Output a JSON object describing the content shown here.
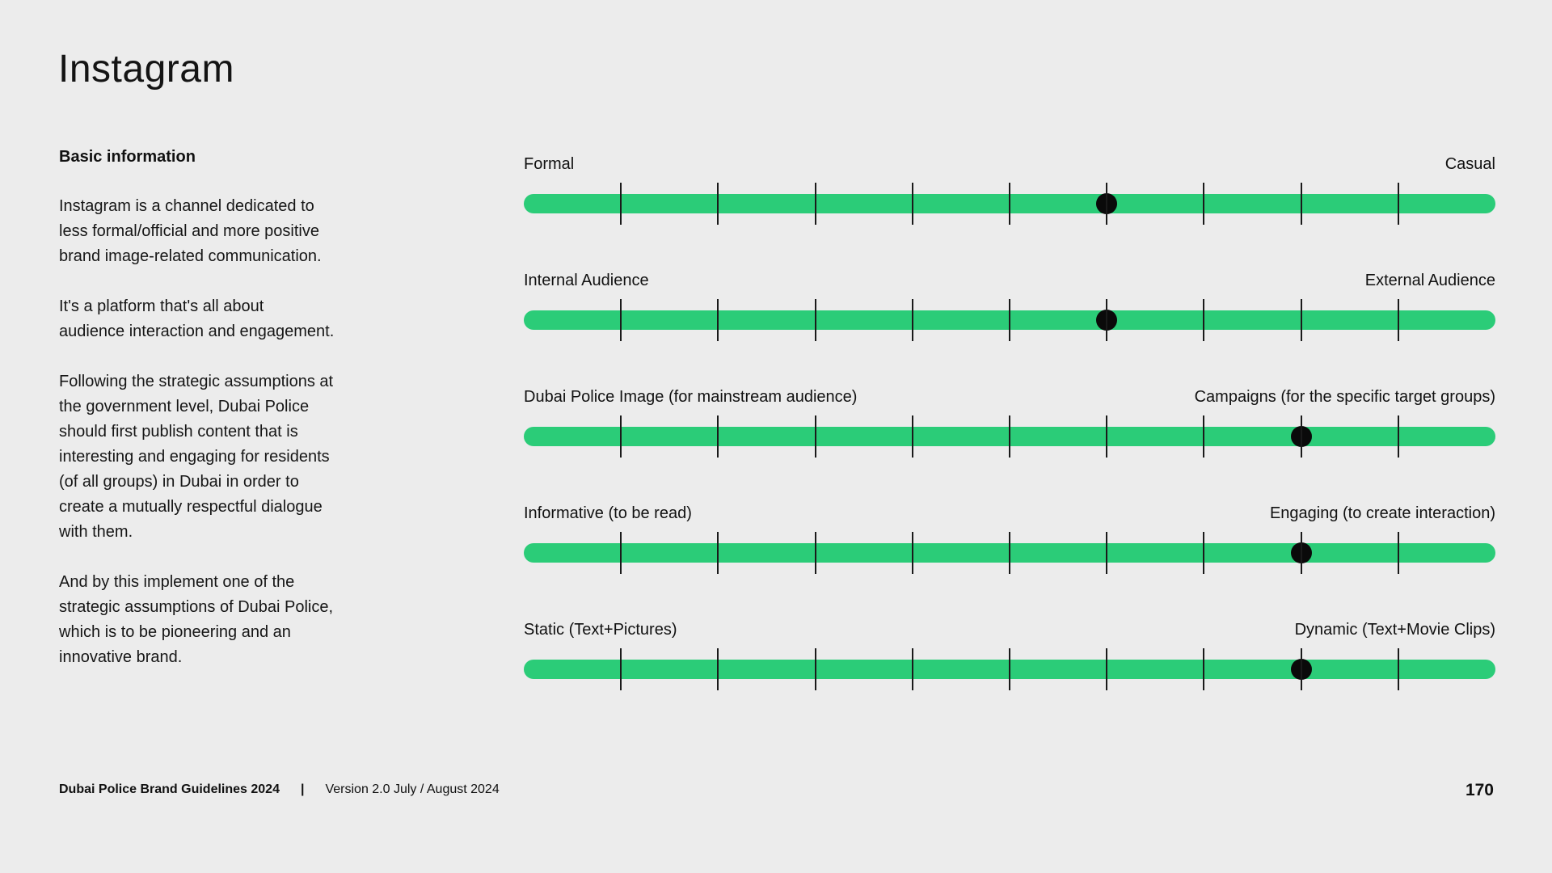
{
  "page": {
    "title": "Instagram",
    "page_number": "170"
  },
  "basic_info": {
    "heading": "Basic information",
    "paragraphs": [
      "Instagram is a channel dedicated to\nless formal/official and more positive\nbrand image-related communication.",
      "It's a platform that's all about\naudience interaction and engagement.",
      "Following the strategic assumptions at\nthe government level, Dubai Police\nshould first publish content that is\ninteresting and engaging for residents\n(of all groups) in Dubai in order to\ncreate a mutually respectful dialogue\nwith them.",
      "And by this implement one of the\nstrategic assumptions of Dubai Police,\nwhich is to be pioneering and an\ninnovative brand."
    ]
  },
  "sliders": {
    "segments": 10,
    "tick_count": 9,
    "items": [
      {
        "left": "Formal",
        "right": "Casual",
        "value_percent": 60
      },
      {
        "left": "Internal Audience",
        "right": "External Audience",
        "value_percent": 60
      },
      {
        "left": "Dubai Police Image (for mainstream audience)",
        "right": "Campaigns (for the specific target groups)",
        "value_percent": 80
      },
      {
        "left": "Informative (to be read)",
        "right": "Engaging (to create interaction)",
        "value_percent": 80
      },
      {
        "left": "Static (Text+Pictures)",
        "right": "Dynamic (Text+Movie Clips)",
        "value_percent": 80
      }
    ]
  },
  "footer": {
    "brand": "Dubai Police Brand Guidelines 2024",
    "separator": "|",
    "version": "Version 2.0 July / August 2024"
  },
  "colors": {
    "background": "#ececec",
    "bar_green": "#2bcc78",
    "tick_black": "#1a1a1a",
    "dot_black": "#0a0a0a",
    "text": "#141414"
  }
}
